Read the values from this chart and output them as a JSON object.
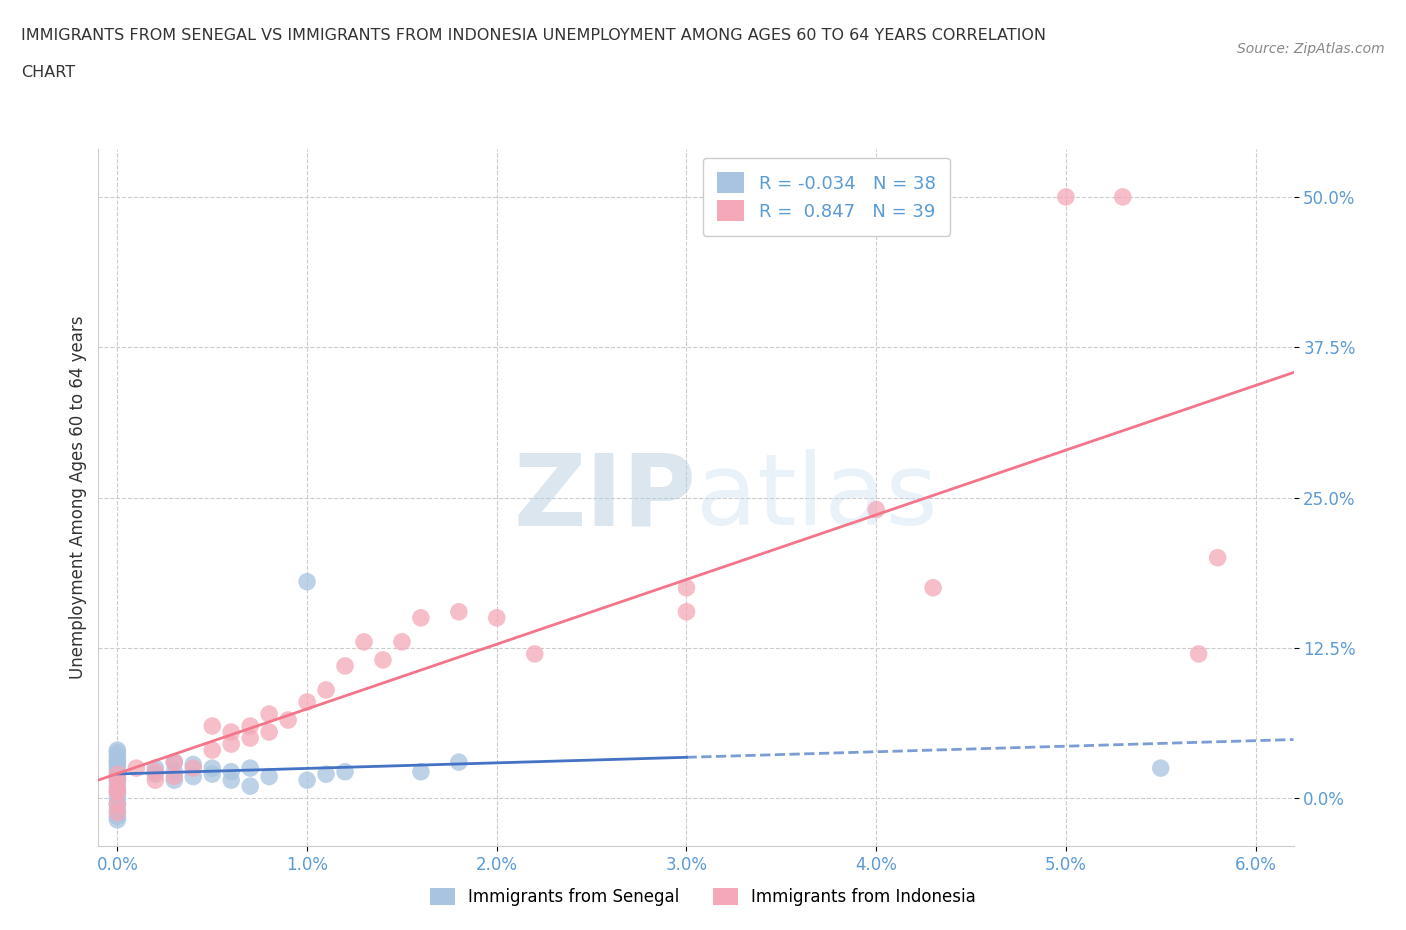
{
  "title_line1": "IMMIGRANTS FROM SENEGAL VS IMMIGRANTS FROM INDONESIA UNEMPLOYMENT AMONG AGES 60 TO 64 YEARS CORRELATION",
  "title_line2": "CHART",
  "source": "Source: ZipAtlas.com",
  "ylabel": "Unemployment Among Ages 60 to 64 years",
  "xlim": [
    -0.001,
    0.062
  ],
  "ylim": [
    -0.04,
    0.54
  ],
  "xtick_labels": [
    "0.0%",
    "1.0%",
    "2.0%",
    "3.0%",
    "4.0%",
    "5.0%",
    "6.0%"
  ],
  "xtick_values": [
    0.0,
    0.01,
    0.02,
    0.03,
    0.04,
    0.05,
    0.06
  ],
  "ytick_labels": [
    "0.0%",
    "12.5%",
    "25.0%",
    "37.5%",
    "50.0%"
  ],
  "ytick_values": [
    0.0,
    0.125,
    0.25,
    0.375,
    0.5
  ],
  "senegal_color": "#a8c4e0",
  "indonesia_color": "#f4a8b8",
  "senegal_R": -0.034,
  "senegal_N": 38,
  "indonesia_R": 0.847,
  "indonesia_N": 39,
  "senegal_line_color": "#4472c4",
  "indonesia_line_color": "#f4758a",
  "watermark_zip": "ZIP",
  "watermark_atlas": "atlas",
  "legend_label_senegal": "Immigrants from Senegal",
  "legend_label_indonesia": "Immigrants from Indonesia",
  "senegal_points_x": [
    0.0,
    0.0,
    0.0,
    0.0,
    0.0,
    0.0,
    0.0,
    0.0,
    0.0,
    0.0,
    0.0,
    0.0,
    0.0,
    0.0,
    0.0,
    0.0,
    0.0,
    0.002,
    0.002,
    0.003,
    0.003,
    0.003,
    0.004,
    0.004,
    0.005,
    0.005,
    0.006,
    0.006,
    0.007,
    0.007,
    0.008,
    0.01,
    0.01,
    0.011,
    0.012,
    0.016,
    0.018,
    0.055
  ],
  "senegal_points_y": [
    0.03,
    0.028,
    0.025,
    0.022,
    0.018,
    0.015,
    0.01,
    0.005,
    0.0,
    -0.005,
    -0.01,
    -0.015,
    -0.018,
    0.032,
    0.035,
    0.038,
    0.04,
    0.025,
    0.02,
    0.03,
    0.022,
    0.015,
    0.018,
    0.028,
    0.02,
    0.025,
    0.015,
    0.022,
    0.01,
    0.025,
    0.018,
    0.18,
    0.015,
    0.02,
    0.022,
    0.022,
    0.03,
    0.025
  ],
  "indonesia_points_x": [
    0.0,
    0.0,
    0.0,
    0.0,
    0.0,
    0.0,
    0.001,
    0.002,
    0.002,
    0.003,
    0.003,
    0.004,
    0.005,
    0.005,
    0.006,
    0.006,
    0.007,
    0.007,
    0.008,
    0.008,
    0.009,
    0.01,
    0.011,
    0.012,
    0.013,
    0.014,
    0.015,
    0.016,
    0.018,
    0.02,
    0.022,
    0.03,
    0.03,
    0.04,
    0.043,
    0.05,
    0.053,
    0.057,
    0.058
  ],
  "indonesia_points_y": [
    0.02,
    0.015,
    0.008,
    0.005,
    -0.005,
    -0.012,
    0.025,
    0.022,
    0.015,
    0.03,
    0.018,
    0.025,
    0.06,
    0.04,
    0.055,
    0.045,
    0.06,
    0.05,
    0.07,
    0.055,
    0.065,
    0.08,
    0.09,
    0.11,
    0.13,
    0.115,
    0.13,
    0.15,
    0.155,
    0.15,
    0.12,
    0.175,
    0.155,
    0.24,
    0.175,
    0.5,
    0.5,
    0.12,
    0.2
  ]
}
